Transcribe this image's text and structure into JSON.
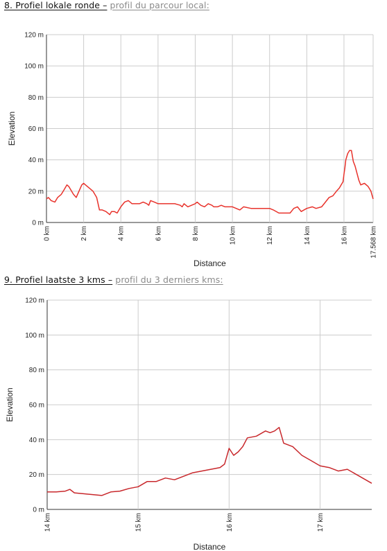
{
  "sections": [
    {
      "heading_nl": "8. Profiel lokale ronde –",
      "heading_fr": "profil du parcour local:"
    },
    {
      "heading_nl": "9. Profiel laatste 3 kms –",
      "heading_fr": "profil du 3 derniers kms:"
    }
  ],
  "chart_data": [
    {
      "type": "line",
      "xlabel": "Distance",
      "ylabel": "Elevation",
      "xlim": [
        0,
        17.568
      ],
      "ylim": [
        0,
        120
      ],
      "grid": true,
      "line_color": "#e8322b",
      "x_ticks": [
        {
          "value": 0,
          "label": "0 km"
        },
        {
          "value": 2,
          "label": "2 km"
        },
        {
          "value": 4,
          "label": "4 km"
        },
        {
          "value": 6,
          "label": "6 km"
        },
        {
          "value": 8,
          "label": "8 km"
        },
        {
          "value": 10,
          "label": "10 km"
        },
        {
          "value": 12,
          "label": "12 km"
        },
        {
          "value": 14,
          "label": "14 km"
        },
        {
          "value": 16,
          "label": "16 km"
        },
        {
          "value": 17.568,
          "label": "17.568 km"
        }
      ],
      "y_ticks": [
        {
          "value": 0,
          "label": "0 m"
        },
        {
          "value": 20,
          "label": "20 m"
        },
        {
          "value": 40,
          "label": "40 m"
        },
        {
          "value": 60,
          "label": "60 m"
        },
        {
          "value": 80,
          "label": "80 m"
        },
        {
          "value": 100,
          "label": "100 m"
        },
        {
          "value": 120,
          "label": "120 m"
        }
      ],
      "x": [
        0,
        0.1,
        0.25,
        0.45,
        0.6,
        0.8,
        0.95,
        1.1,
        1.2,
        1.3,
        1.45,
        1.6,
        1.75,
        1.9,
        2.0,
        2.1,
        2.3,
        2.5,
        2.7,
        2.85,
        3.0,
        3.2,
        3.4,
        3.5,
        3.65,
        3.8,
        4.0,
        4.2,
        4.4,
        4.5,
        4.6,
        4.8,
        5.0,
        5.2,
        5.4,
        5.5,
        5.6,
        5.8,
        6.0,
        6.3,
        6.6,
        6.9,
        7.2,
        7.3,
        7.4,
        7.6,
        7.8,
        8.0,
        8.1,
        8.3,
        8.5,
        8.7,
        8.9,
        9.0,
        9.2,
        9.4,
        9.6,
        9.8,
        10.0,
        10.2,
        10.4,
        10.6,
        11.0,
        11.5,
        12.0,
        12.2,
        12.5,
        12.8,
        13.1,
        13.3,
        13.5,
        13.7,
        14.0,
        14.3,
        14.5,
        14.8,
        15.0,
        15.2,
        15.4,
        15.6,
        15.75,
        15.85,
        15.95,
        16.0,
        16.05,
        16.1,
        16.2,
        16.3,
        16.4,
        16.5,
        16.6,
        16.8,
        16.9,
        17.1,
        17.3,
        17.45,
        17.568
      ],
      "y": [
        15,
        16,
        14,
        13,
        16,
        18,
        21,
        24,
        23,
        21,
        18,
        16,
        20,
        24,
        25,
        24,
        22,
        20,
        16,
        8,
        8,
        7,
        5,
        7,
        7,
        6,
        10,
        13,
        14,
        13,
        12,
        12,
        12,
        13,
        12,
        11,
        14,
        13,
        12,
        12,
        12,
        12,
        11,
        10,
        12,
        10,
        11,
        12,
        13,
        11,
        10,
        12,
        11,
        10,
        10,
        11,
        10,
        10,
        10,
        9,
        8,
        10,
        9,
        9,
        9,
        8,
        6,
        6,
        6,
        9,
        10,
        7,
        9,
        10,
        9,
        10,
        13,
        16,
        17,
        20,
        22,
        24,
        26,
        31,
        35,
        40,
        44,
        46,
        46,
        39,
        36,
        27,
        24,
        25,
        23,
        20,
        15
      ]
    },
    {
      "type": "line",
      "xlabel": "Distance",
      "ylabel": "Elevation",
      "xlim": [
        14,
        17.568
      ],
      "ylim": [
        0,
        120
      ],
      "grid": true,
      "line_color": "#c8272b",
      "x_ticks": [
        {
          "value": 14,
          "label": "14 km"
        },
        {
          "value": 15,
          "label": "15 km"
        },
        {
          "value": 16,
          "label": "16 km"
        },
        {
          "value": 17,
          "label": "17 km"
        }
      ],
      "y_ticks": [
        {
          "value": 0,
          "label": "0 m"
        },
        {
          "value": 20,
          "label": "20 m"
        },
        {
          "value": 40,
          "label": "40 m"
        },
        {
          "value": 60,
          "label": "60 m"
        },
        {
          "value": 80,
          "label": "80 m"
        },
        {
          "value": 100,
          "label": "100 m"
        },
        {
          "value": 120,
          "label": "120 m"
        }
      ],
      "x": [
        14.0,
        14.1,
        14.2,
        14.25,
        14.3,
        14.4,
        14.5,
        14.6,
        14.7,
        14.8,
        14.9,
        15.0,
        15.1,
        15.2,
        15.3,
        15.4,
        15.5,
        15.6,
        15.7,
        15.8,
        15.9,
        15.95,
        16.0,
        16.05,
        16.1,
        16.15,
        16.2,
        16.3,
        16.4,
        16.45,
        16.5,
        16.55,
        16.6,
        16.7,
        16.8,
        16.9,
        17.0,
        17.1,
        17.2,
        17.3,
        17.4,
        17.5,
        17.568
      ],
      "y": [
        10,
        10,
        10.5,
        11.5,
        9.5,
        9,
        8.5,
        8,
        10,
        10.5,
        12,
        13,
        16,
        16,
        18,
        17,
        19,
        21,
        22,
        23,
        24,
        26,
        35,
        31,
        33,
        36,
        41,
        42,
        45,
        44,
        45,
        47,
        38,
        36,
        31,
        28,
        25,
        24,
        22,
        23,
        20,
        17,
        15
      ]
    }
  ]
}
